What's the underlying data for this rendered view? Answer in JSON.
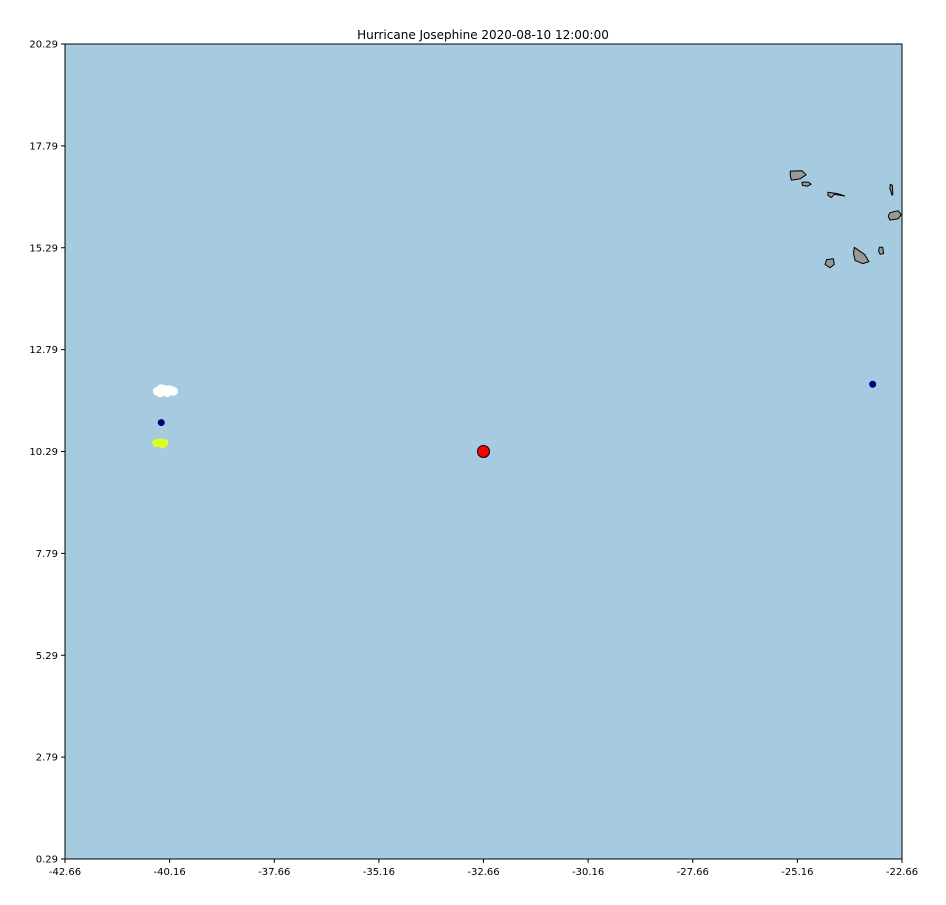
{
  "title": "Hurricane Josephine 2020-08-10 12:00:00",
  "colors": {
    "ocean": "#a6cadf",
    "land": "#999999",
    "land_edge": "#000000",
    "storm_center": "#ff0000",
    "marker_navy": "#000080",
    "cloud": "#ffffff",
    "highlight": "#ddff22"
  },
  "map": {
    "lon_range": [
      -42.66,
      -22.66
    ],
    "lat_range": [
      0.29,
      20.29
    ],
    "x_ticks": [
      "-42.66",
      "-40.16",
      "-37.66",
      "-35.16",
      "-32.66",
      "-30.16",
      "-27.66",
      "-25.16",
      "-22.66"
    ],
    "y_ticks": [
      "20.29",
      "17.79",
      "15.29",
      "12.79",
      "10.29",
      "7.79",
      "5.29",
      "2.79",
      "0.29"
    ],
    "x_tick_values": [
      -42.66,
      -40.16,
      -37.66,
      -35.16,
      -32.66,
      -30.16,
      -27.66,
      -25.16,
      -22.66
    ],
    "y_tick_values": [
      20.29,
      17.79,
      15.29,
      12.79,
      10.29,
      7.79,
      5.29,
      2.79,
      0.29
    ]
  },
  "markers": {
    "storm_center": {
      "lon": -32.66,
      "lat": 10.29
    },
    "navy_points": [
      {
        "lon": -40.36,
        "lat": 11.0
      },
      {
        "lon": -23.36,
        "lat": 11.94
      }
    ],
    "white_blob": {
      "lon": -40.26,
      "lat": 11.77
    },
    "yellow_blob": {
      "lon": -40.36,
      "lat": 10.5
    }
  },
  "islands": [
    {
      "name": "santo-antao",
      "points": [
        [
          -25.33,
          17.17
        ],
        [
          -25.05,
          17.18
        ],
        [
          -24.95,
          17.08
        ],
        [
          -25.1,
          16.98
        ],
        [
          -25.3,
          16.95
        ],
        [
          -25.33,
          17.05
        ]
      ]
    },
    {
      "name": "sao-vicente",
      "points": [
        [
          -25.05,
          16.9
        ],
        [
          -24.9,
          16.9
        ],
        [
          -24.83,
          16.85
        ],
        [
          -24.92,
          16.8
        ],
        [
          -25.04,
          16.82
        ]
      ]
    },
    {
      "name": "sao-nicolau",
      "points": [
        [
          -24.43,
          16.65
        ],
        [
          -24.2,
          16.62
        ],
        [
          -24.03,
          16.56
        ],
        [
          -24.28,
          16.6
        ],
        [
          -24.35,
          16.52
        ],
        [
          -24.43,
          16.58
        ]
      ]
    },
    {
      "name": "sal",
      "points": [
        [
          -22.94,
          16.85
        ],
        [
          -22.89,
          16.82
        ],
        [
          -22.88,
          16.6
        ],
        [
          -22.9,
          16.58
        ],
        [
          -22.95,
          16.75
        ]
      ]
    },
    {
      "name": "boa-vista",
      "points": [
        [
          -22.95,
          16.15
        ],
        [
          -22.75,
          16.2
        ],
        [
          -22.68,
          16.1
        ],
        [
          -22.75,
          16.0
        ],
        [
          -22.95,
          15.97
        ],
        [
          -22.99,
          16.07
        ]
      ]
    },
    {
      "name": "maio",
      "points": [
        [
          -23.2,
          15.3
        ],
        [
          -23.12,
          15.3
        ],
        [
          -23.1,
          15.15
        ],
        [
          -23.18,
          15.13
        ],
        [
          -23.22,
          15.2
        ]
      ]
    },
    {
      "name": "santiago",
      "points": [
        [
          -23.8,
          15.3
        ],
        [
          -23.55,
          15.12
        ],
        [
          -23.45,
          14.95
        ],
        [
          -23.6,
          14.9
        ],
        [
          -23.78,
          14.98
        ],
        [
          -23.82,
          15.15
        ]
      ]
    },
    {
      "name": "fogo",
      "points": [
        [
          -24.46,
          15.0
        ],
        [
          -24.3,
          15.02
        ],
        [
          -24.28,
          14.88
        ],
        [
          -24.38,
          14.8
        ],
        [
          -24.5,
          14.88
        ]
      ]
    }
  ]
}
